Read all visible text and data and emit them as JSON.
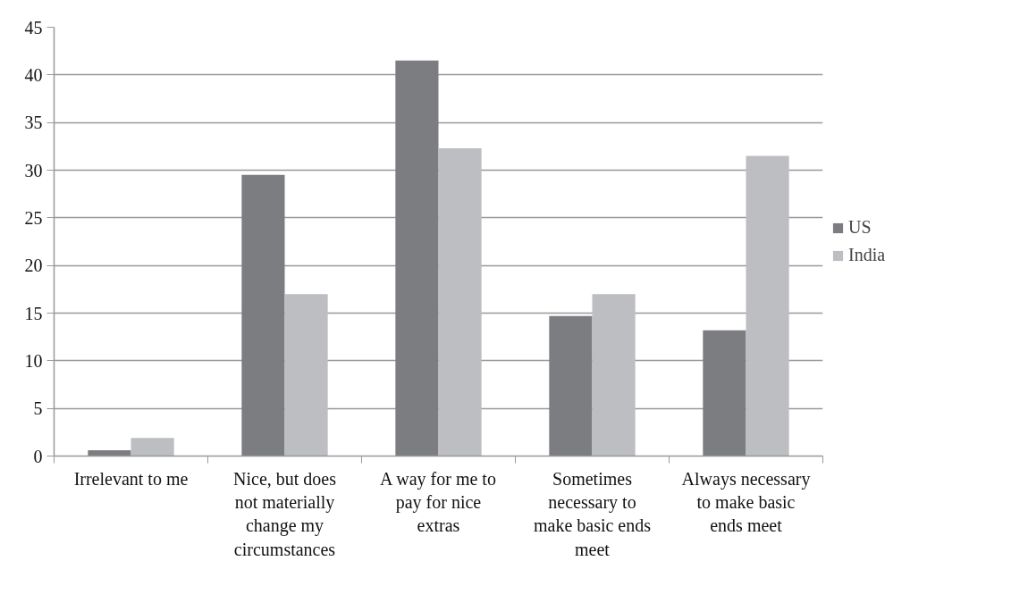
{
  "chart_data": {
    "type": "bar",
    "categories": [
      "Irrelevant to me",
      "Nice, but does not materially change my circumstances",
      "A way for me to pay for nice extras",
      "Sometimes necessary to make basic ends meet",
      "Always necessary to make basic ends meet"
    ],
    "series": [
      {
        "name": "US",
        "color": "#7c7d81",
        "values": [
          0.6,
          29.5,
          41.5,
          14.7,
          13.2
        ]
      },
      {
        "name": "India",
        "color": "#bdbec2",
        "values": [
          1.9,
          17.0,
          32.3,
          17.0,
          31.5
        ]
      }
    ],
    "ylim": [
      0,
      45
    ],
    "yticks": [
      0,
      5,
      10,
      15,
      20,
      25,
      30,
      35,
      40,
      45
    ],
    "grid": "y",
    "legend": "right"
  }
}
